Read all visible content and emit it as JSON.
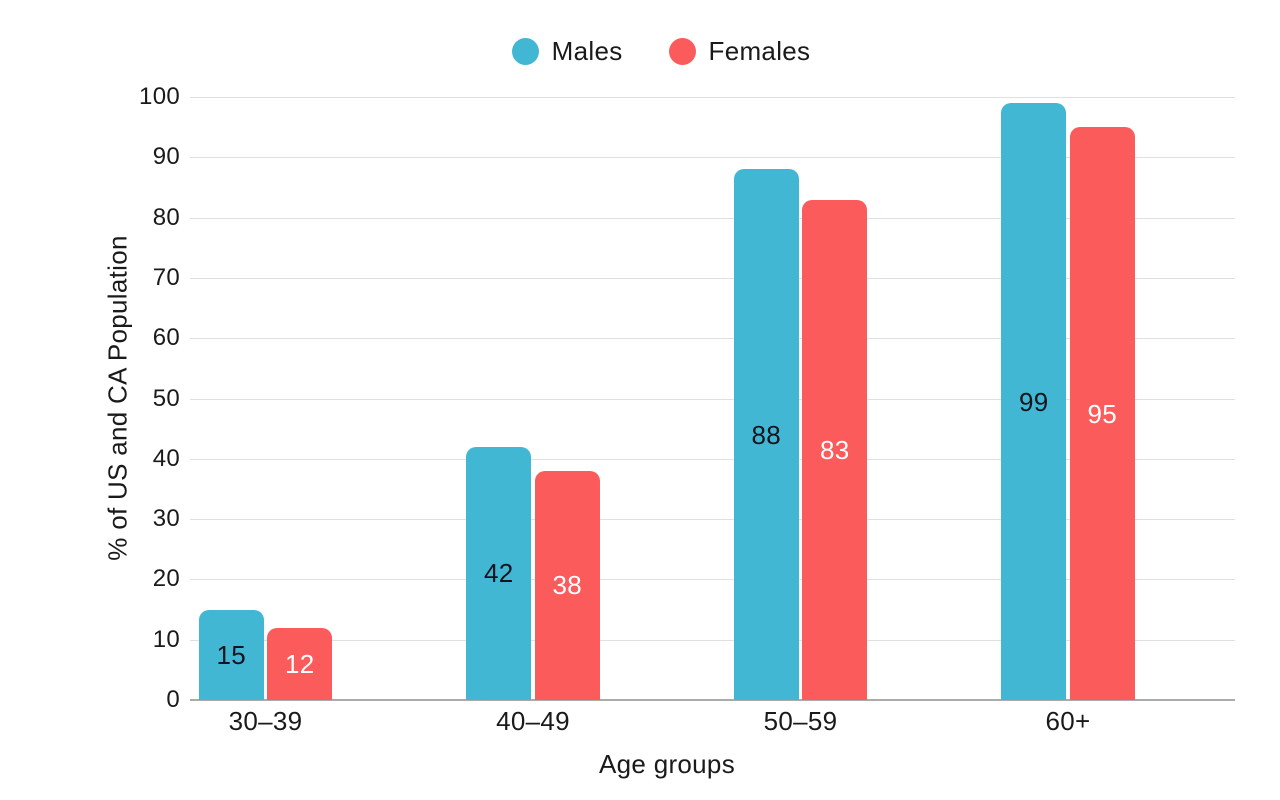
{
  "page": {
    "background_color": "#ffffff",
    "text_color": "#1a1a1a"
  },
  "legend": {
    "position": "top-center",
    "items": [
      {
        "label": "Males",
        "color": "#41B7D3"
      },
      {
        "label": "Females",
        "color": "#FC5B5B"
      }
    ]
  },
  "chart_data": {
    "type": "bar",
    "title": "",
    "categories": [
      "30–39",
      "40–49",
      "50–59",
      "60+"
    ],
    "series": [
      {
        "name": "Males",
        "color": "#41B7D3",
        "label_color": "#14141e",
        "values": [
          15,
          42,
          88,
          99
        ]
      },
      {
        "name": "Females",
        "color": "#FC5B5B",
        "label_color": "#ffffff",
        "values": [
          12,
          38,
          83,
          95
        ]
      }
    ],
    "xlabel": "Age groups",
    "ylabel": "% of US and CA Population",
    "ylim": [
      0,
      100
    ],
    "yticks": [
      0,
      10,
      20,
      30,
      40,
      50,
      60,
      70,
      80,
      90,
      100
    ],
    "grid": true,
    "grid_color": "#e0e0e0",
    "axis_line_color": "#ababab",
    "bar_value_labels": "centered-inside",
    "legend_position": "top"
  }
}
